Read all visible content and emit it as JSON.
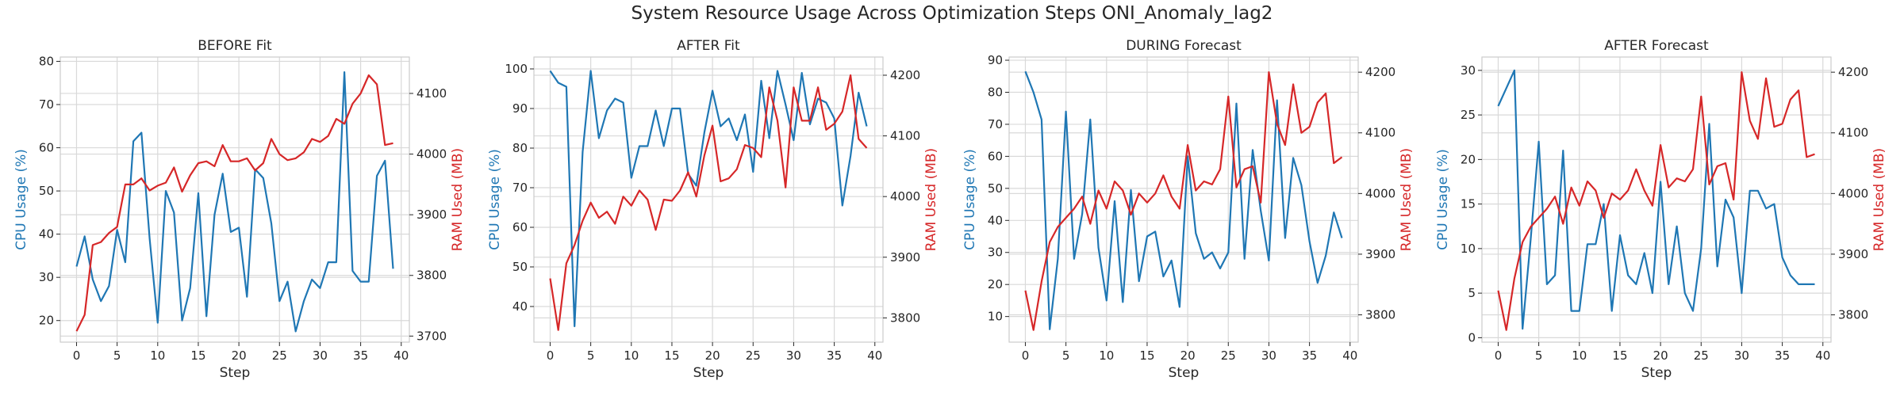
{
  "figure": {
    "title": "System Resource Usage Across Optimization Steps ONI_Anomaly_lag2"
  },
  "colors": {
    "cpu": "#1f77b4",
    "ram": "#d62728",
    "grid": "#d9d9d9",
    "spine": "#cccccc",
    "text": "#262626"
  },
  "chart_data": [
    {
      "type": "line",
      "title": "BEFORE Fit",
      "xlabel": "Step",
      "ylabel_left": "CPU Usage (%)",
      "ylabel_right": "RAM Used (MB)",
      "xlim": [
        -2,
        41
      ],
      "xticks": [
        0,
        5,
        10,
        15,
        20,
        25,
        30,
        35,
        40
      ],
      "ylim_left": [
        15,
        81
      ],
      "yticks_left": [
        20,
        30,
        40,
        50,
        60,
        70,
        80
      ],
      "ylim_right": [
        3690,
        4160
      ],
      "yticks_right": [
        3700,
        3800,
        3900,
        4000,
        4100
      ],
      "grid": true,
      "series": [
        {
          "name": "CPU Usage (%)",
          "axis": "left",
          "color": "#1f77b4",
          "x": [
            0,
            1,
            2,
            3,
            4,
            5,
            6,
            7,
            8,
            9,
            10,
            11,
            12,
            13,
            14,
            15,
            16,
            17,
            18,
            19,
            20,
            21,
            22,
            23,
            24,
            25,
            26,
            27,
            28,
            29,
            30,
            31,
            32,
            33,
            34,
            35,
            36,
            37,
            38,
            39
          ],
          "values": [
            32.5,
            39.5,
            29.5,
            24.5,
            28,
            41,
            33.5,
            61.5,
            63.5,
            39,
            19.5,
            50,
            45,
            20,
            27.5,
            49.5,
            21,
            44.5,
            54,
            40.5,
            41.5,
            25.5,
            55,
            53,
            42.5,
            24.5,
            29,
            17.5,
            24.5,
            29.5,
            27.5,
            33.5,
            33.5,
            77.5,
            31.5,
            29,
            29,
            53.5,
            57,
            32
          ]
        },
        {
          "name": "RAM Used (MB)",
          "axis": "right",
          "color": "#d62728",
          "x": [
            0,
            1,
            2,
            3,
            4,
            5,
            6,
            7,
            8,
            9,
            10,
            11,
            12,
            13,
            14,
            15,
            16,
            17,
            18,
            19,
            20,
            21,
            22,
            23,
            24,
            25,
            26,
            27,
            28,
            29,
            30,
            31,
            32,
            33,
            34,
            35,
            36,
            37,
            38,
            39
          ],
          "values": [
            3708,
            3735,
            3850,
            3855,
            3870,
            3880,
            3950,
            3950,
            3960,
            3940,
            3948,
            3953,
            3978,
            3938,
            3965,
            3985,
            3988,
            3980,
            4015,
            3988,
            3988,
            3993,
            3973,
            3985,
            4025,
            4000,
            3990,
            3993,
            4003,
            4025,
            4020,
            4030,
            4058,
            4050,
            4083,
            4100,
            4130,
            4115,
            4015,
            4018
          ]
        }
      ]
    },
    {
      "type": "line",
      "title": "AFTER Fit",
      "xlabel": "Step",
      "ylabel_left": "CPU Usage (%)",
      "ylabel_right": "RAM Used (MB)",
      "xlim": [
        -2,
        41
      ],
      "xticks": [
        0,
        5,
        10,
        15,
        20,
        25,
        30,
        35,
        40
      ],
      "ylim_left": [
        31,
        103
      ],
      "yticks_left": [
        40,
        50,
        60,
        70,
        80,
        90,
        100
      ],
      "ylim_right": [
        3760,
        4230
      ],
      "yticks_right": [
        3800,
        3900,
        4000,
        4100,
        4200
      ],
      "grid": true,
      "series": [
        {
          "name": "CPU Usage (%)",
          "axis": "left",
          "color": "#1f77b4",
          "x": [
            0,
            1,
            2,
            3,
            4,
            5,
            6,
            7,
            8,
            9,
            10,
            11,
            12,
            13,
            14,
            15,
            16,
            17,
            18,
            19,
            20,
            21,
            22,
            23,
            24,
            25,
            26,
            27,
            28,
            29,
            30,
            31,
            32,
            33,
            34,
            35,
            36,
            37,
            38,
            39
          ],
          "values": [
            99.5,
            96.5,
            95.5,
            35,
            79,
            99.5,
            82.5,
            89.5,
            92.5,
            91.5,
            72.5,
            80.5,
            80.5,
            89.5,
            80.5,
            90,
            90,
            73.5,
            70.5,
            84,
            94.5,
            85.5,
            87.5,
            82,
            88.5,
            74,
            97,
            82.5,
            99.5,
            91,
            82,
            99,
            86,
            92.5,
            91.5,
            87.5,
            65.5,
            78,
            94,
            85.5
          ]
        },
        {
          "name": "RAM Used (MB)",
          "axis": "right",
          "color": "#d62728",
          "x": [
            0,
            1,
            2,
            3,
            4,
            5,
            6,
            7,
            8,
            9,
            10,
            11,
            12,
            13,
            14,
            15,
            16,
            17,
            18,
            19,
            20,
            21,
            22,
            23,
            24,
            25,
            26,
            27,
            28,
            29,
            30,
            31,
            32,
            33,
            34,
            35,
            36,
            37,
            38,
            39
          ],
          "values": [
            3865,
            3780,
            3890,
            3920,
            3960,
            3990,
            3965,
            3975,
            3955,
            4000,
            3985,
            4010,
            3995,
            3945,
            3995,
            3993,
            4010,
            4040,
            4000,
            4068,
            4117,
            4025,
            4030,
            4045,
            4085,
            4080,
            4065,
            4180,
            4125,
            4015,
            4180,
            4125,
            4125,
            4180,
            4110,
            4120,
            4140,
            4200,
            4095,
            4080
          ]
        }
      ]
    },
    {
      "type": "line",
      "title": "DURING Forecast",
      "xlabel": "Step",
      "ylabel_left": "CPU Usage (%)",
      "ylabel_right": "RAM Used (MB)",
      "xlim": [
        -2,
        41
      ],
      "xticks": [
        0,
        5,
        10,
        15,
        20,
        25,
        30,
        35,
        40
      ],
      "ylim_left": [
        2,
        91
      ],
      "yticks_left": [
        10,
        20,
        30,
        40,
        50,
        60,
        70,
        80,
        90
      ],
      "ylim_right": [
        3755,
        4225
      ],
      "yticks_right": [
        3800,
        3900,
        4000,
        4100,
        4200
      ],
      "grid": true,
      "series": [
        {
          "name": "CPU Usage (%)",
          "axis": "left",
          "color": "#1f77b4",
          "x": [
            0,
            1,
            2,
            3,
            4,
            5,
            6,
            7,
            8,
            9,
            10,
            11,
            12,
            13,
            14,
            15,
            16,
            17,
            18,
            19,
            20,
            21,
            22,
            23,
            24,
            25,
            26,
            27,
            28,
            29,
            30,
            31,
            32,
            33,
            34,
            35,
            36,
            37,
            38,
            39
          ],
          "values": [
            86.5,
            80,
            71.5,
            6,
            28,
            74,
            28,
            42,
            71.5,
            31.5,
            15,
            46,
            14.5,
            49.5,
            21,
            35,
            36.5,
            22.5,
            27.5,
            13,
            60,
            36,
            28,
            30,
            25,
            30,
            76.5,
            28,
            62,
            43,
            27.5,
            77.5,
            34.5,
            59.5,
            51,
            33.5,
            20.5,
            29,
            42.5,
            34.5
          ]
        },
        {
          "name": "RAM Used (MB)",
          "axis": "right",
          "color": "#d62728",
          "x": [
            0,
            1,
            2,
            3,
            4,
            5,
            6,
            7,
            8,
            9,
            10,
            11,
            12,
            13,
            14,
            15,
            16,
            17,
            18,
            19,
            20,
            21,
            22,
            23,
            24,
            25,
            26,
            27,
            28,
            29,
            30,
            31,
            32,
            33,
            34,
            35,
            36,
            37,
            38,
            39
          ],
          "values": [
            3840,
            3775,
            3855,
            3920,
            3945,
            3960,
            3975,
            3995,
            3950,
            4005,
            3975,
            4020,
            4005,
            3965,
            4000,
            3985,
            4000,
            4030,
            3995,
            3975,
            4080,
            4005,
            4020,
            4015,
            4040,
            4160,
            4010,
            4040,
            4045,
            3985,
            4200,
            4115,
            4080,
            4180,
            4100,
            4110,
            4150,
            4165,
            4050,
            4060
          ]
        }
      ]
    },
    {
      "type": "line",
      "title": "AFTER Forecast",
      "xlabel": "Step",
      "ylabel_left": "CPU Usage (%)",
      "ylabel_right": "RAM Used (MB)",
      "xlim": [
        -2,
        41
      ],
      "xticks": [
        0,
        5,
        10,
        15,
        20,
        25,
        30,
        35,
        40
      ],
      "ylim_left": [
        -0.5,
        31.5
      ],
      "yticks_left": [
        0,
        5,
        10,
        15,
        20,
        25,
        30
      ],
      "ylim_right": [
        3755,
        4225
      ],
      "yticks_right": [
        3800,
        3900,
        4000,
        4100,
        4200
      ],
      "grid": true,
      "series": [
        {
          "name": "CPU Usage (%)",
          "axis": "left",
          "color": "#1f77b4",
          "x": [
            0,
            1,
            2,
            3,
            4,
            5,
            6,
            7,
            8,
            9,
            10,
            11,
            12,
            13,
            14,
            15,
            16,
            17,
            18,
            19,
            20,
            21,
            22,
            23,
            24,
            25,
            26,
            27,
            28,
            29,
            30,
            31,
            32,
            33,
            34,
            35,
            36,
            37,
            38,
            39
          ],
          "values": [
            26,
            28,
            30,
            1,
            11,
            22,
            6,
            7,
            21,
            3,
            3,
            10.5,
            10.5,
            15,
            3,
            11.5,
            7,
            6,
            9.5,
            5,
            17.5,
            6,
            12.5,
            5,
            3,
            10,
            24,
            8,
            15.5,
            13.5,
            5,
            16.5,
            16.5,
            14.5,
            15,
            9,
            7,
            6,
            6,
            6
          ]
        },
        {
          "name": "RAM Used (MB)",
          "axis": "right",
          "color": "#d62728",
          "x": [
            0,
            1,
            2,
            3,
            4,
            5,
            6,
            7,
            8,
            9,
            10,
            11,
            12,
            13,
            14,
            15,
            16,
            17,
            18,
            19,
            20,
            21,
            22,
            23,
            24,
            25,
            26,
            27,
            28,
            29,
            30,
            31,
            32,
            33,
            34,
            35,
            36,
            37,
            38,
            39
          ],
          "values": [
            3840,
            3775,
            3860,
            3920,
            3945,
            3960,
            3975,
            3995,
            3950,
            4010,
            3980,
            4020,
            4005,
            3960,
            4000,
            3990,
            4005,
            4040,
            4005,
            3980,
            4080,
            4010,
            4025,
            4020,
            4040,
            4160,
            4015,
            4045,
            4050,
            3990,
            4200,
            4120,
            4090,
            4190,
            4110,
            4115,
            4155,
            4170,
            4060,
            4065
          ]
        }
      ]
    }
  ]
}
